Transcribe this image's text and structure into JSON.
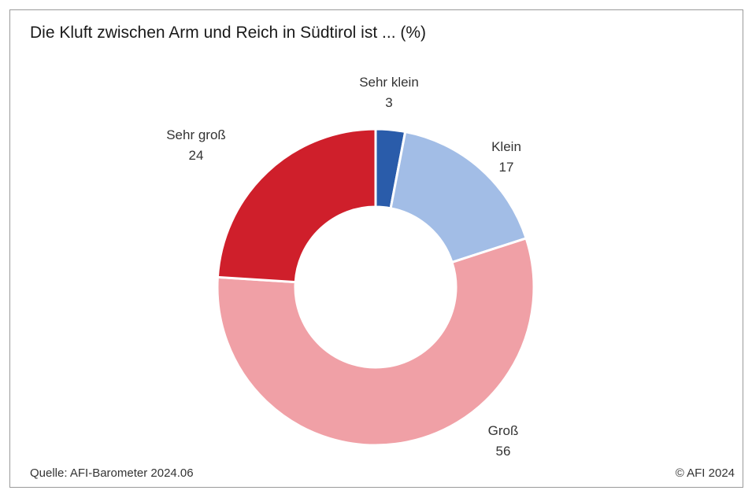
{
  "chart_title": "Die Kluft zwischen Arm und Reich in Südtirol ist ... (%)",
  "source": "Quelle: AFI-Barometer 2024.06",
  "copyright": "© AFI 2024",
  "chart_data": {
    "type": "pie",
    "variant": "donut",
    "title": "Die Kluft zwischen Arm und Reich in Südtirol ist ... (%)",
    "unit": "%",
    "categories": [
      "Sehr klein",
      "Klein",
      "Groß",
      "Sehr groß"
    ],
    "values": [
      3,
      17,
      56,
      24
    ],
    "colors": [
      "#2a5caa",
      "#a2bde6",
      "#f0a0a6",
      "#cf1f2b"
    ],
    "legend": "none",
    "labels_on_chart": true
  }
}
